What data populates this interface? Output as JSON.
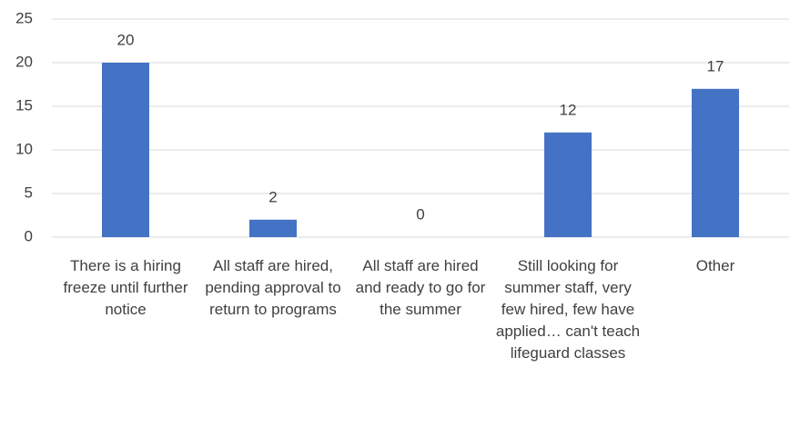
{
  "chart_data": {
    "type": "bar",
    "categories": [
      "There is a hiring freeze until further notice",
      "All staff are hired, pending approval to return to programs",
      "All staff are hired and ready to go for the summer",
      "Still looking for summer staff, very few hired, few have applied… can't teach lifeguard classes",
      "Other"
    ],
    "values": [
      20,
      2,
      0,
      12,
      17
    ],
    "color": "#4472c4",
    "ylim": [
      0,
      25
    ],
    "yticks": [
      0,
      5,
      10,
      15,
      20,
      25
    ],
    "grid": true
  }
}
